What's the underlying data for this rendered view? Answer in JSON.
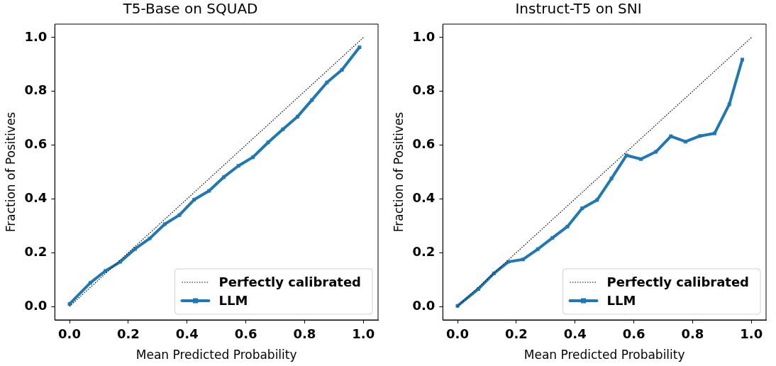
{
  "chart_data": [
    {
      "type": "line",
      "title": "T5-Base on SQUAD",
      "xlabel": "Mean Predicted Probability",
      "ylabel": "Fraction of Positives",
      "xlim": [
        -0.05,
        1.05
      ],
      "ylim": [
        -0.05,
        1.05
      ],
      "xticks": [
        {
          "value": 0,
          "label": "0.0"
        },
        {
          "value": 0.2,
          "label": "0.2"
        },
        {
          "value": 0.4,
          "label": "0.4"
        },
        {
          "value": 0.6,
          "label": "0.6"
        },
        {
          "value": 0.8,
          "label": "0.8"
        },
        {
          "value": 1,
          "label": "1.0"
        }
      ],
      "yticks": [
        {
          "value": 0,
          "label": "0.0"
        },
        {
          "value": 0.2,
          "label": "0.2"
        },
        {
          "value": 0.4,
          "label": "0.4"
        },
        {
          "value": 0.6,
          "label": "0.6"
        },
        {
          "value": 0.8,
          "label": "0.8"
        },
        {
          "value": 1,
          "label": "1.0"
        }
      ],
      "grid": false,
      "legend": "bottom right",
      "series": [
        {
          "name": "Perfectly calibrated",
          "color": "#000000",
          "line_style": "dotted",
          "marker": "none",
          "x": [
            0,
            1
          ],
          "values": [
            0,
            1
          ]
        },
        {
          "name": "LLM",
          "color": "#1f77b4",
          "line_style": "solid",
          "marker": "square",
          "x": [
            0.0,
            0.071,
            0.122,
            0.173,
            0.223,
            0.273,
            0.324,
            0.374,
            0.424,
            0.475,
            0.525,
            0.575,
            0.624,
            0.676,
            0.726,
            0.776,
            0.825,
            0.876,
            0.927,
            0.987
          ],
          "values": [
            0.009,
            0.088,
            0.132,
            0.166,
            0.214,
            0.253,
            0.306,
            0.34,
            0.397,
            0.43,
            0.481,
            0.523,
            0.555,
            0.61,
            0.659,
            0.706,
            0.768,
            0.833,
            0.88,
            0.964
          ]
        }
      ]
    },
    {
      "type": "line",
      "title": "Instruct-T5 on SNI",
      "xlabel": "Mean Predicted Probability",
      "ylabel": "Fraction of Positives",
      "xlim": [
        -0.05,
        1.05
      ],
      "ylim": [
        -0.05,
        1.05
      ],
      "xticks": [
        {
          "value": 0,
          "label": "0.0"
        },
        {
          "value": 0.2,
          "label": "0.2"
        },
        {
          "value": 0.4,
          "label": "0.4"
        },
        {
          "value": 0.6,
          "label": "0.6"
        },
        {
          "value": 0.8,
          "label": "0.8"
        },
        {
          "value": 1,
          "label": "1.0"
        }
      ],
      "yticks": [
        {
          "value": 0,
          "label": "0.0"
        },
        {
          "value": 0.2,
          "label": "0.2"
        },
        {
          "value": 0.4,
          "label": "0.4"
        },
        {
          "value": 0.6,
          "label": "0.6"
        },
        {
          "value": 0.8,
          "label": "0.8"
        },
        {
          "value": 1,
          "label": "1.0"
        }
      ],
      "grid": false,
      "legend": "bottom right",
      "series": [
        {
          "name": "Perfectly calibrated",
          "color": "#000000",
          "line_style": "dotted",
          "marker": "none",
          "x": [
            0,
            1
          ],
          "values": [
            0,
            1
          ]
        },
        {
          "name": "LLM",
          "color": "#1f77b4",
          "line_style": "solid",
          "marker": "square",
          "x": [
            0.0,
            0.071,
            0.124,
            0.173,
            0.223,
            0.273,
            0.323,
            0.374,
            0.424,
            0.475,
            0.524,
            0.575,
            0.624,
            0.675,
            0.726,
            0.776,
            0.825,
            0.875,
            0.925,
            0.969
          ],
          "values": [
            0.002,
            0.065,
            0.123,
            0.166,
            0.175,
            0.213,
            0.255,
            0.297,
            0.365,
            0.396,
            0.476,
            0.562,
            0.548,
            0.575,
            0.633,
            0.613,
            0.634,
            0.644,
            0.752,
            0.918
          ]
        }
      ]
    }
  ]
}
